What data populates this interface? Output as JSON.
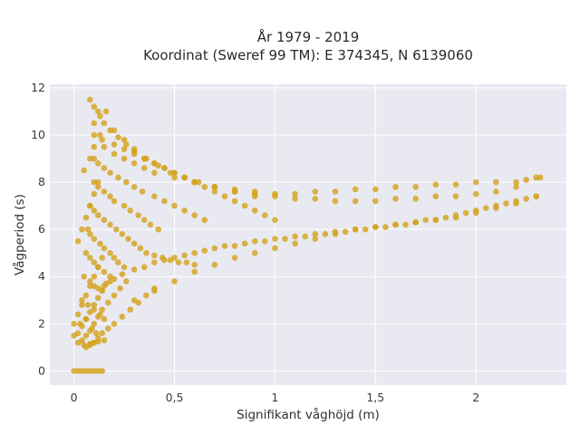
{
  "chart_data": {
    "type": "scatter",
    "title_lines": [
      "År 1979 - 2019",
      "Koordinat (Sweref 99 TM): E 374345, N 6139060"
    ],
    "xlabel": "Signifikant våghöjd (m)",
    "ylabel": "Vågperiod (s)",
    "xlim": [
      -0.12,
      2.45
    ],
    "ylim": [
      -0.6,
      12.15
    ],
    "x_ticks": [
      0,
      0.5,
      1,
      1.5,
      2
    ],
    "x_tick_labels": [
      "0",
      "0,5",
      "1",
      "1,5",
      "2"
    ],
    "y_ticks": [
      0,
      2,
      4,
      6,
      8,
      10,
      12
    ],
    "y_tick_labels": [
      "0",
      "2",
      "4",
      "6",
      "8",
      "10",
      "12"
    ],
    "grid": true,
    "colors": {
      "marker": "#d4a31f",
      "plot_background": "#e9e9f1",
      "grid": "#ffffff"
    },
    "series": [
      {
        "x": [
          0.0,
          0.02,
          0.04,
          0.06,
          0.08,
          0.1,
          0.12,
          0.14,
          0.0,
          0.02,
          0.05,
          0.08,
          0.1,
          0.12,
          0.15,
          0.03,
          0.06,
          0.09,
          0.11,
          0.04,
          0.07,
          0.1,
          0.13,
          0.15,
          0.05,
          0.08,
          0.1,
          0.14,
          0.06,
          0.08,
          0.1,
          0.12,
          0.15,
          0.07,
          0.08,
          0.1,
          0.13,
          0.15,
          0.18,
          0.2,
          0.22,
          0.25,
          0.08,
          0.1,
          0.12,
          0.15,
          0.18,
          0.21,
          0.24,
          0.27,
          0.3,
          0.33,
          0.36,
          0.4,
          0.44,
          0.48,
          0.52,
          0.56,
          0.6,
          0.1,
          0.12,
          0.15,
          0.18,
          0.2,
          0.25,
          0.28,
          0.32,
          0.35,
          0.38,
          0.42,
          0.1,
          0.12,
          0.15,
          0.18,
          0.22,
          0.26,
          0.3,
          0.34,
          0.4,
          0.45,
          0.5,
          0.55,
          0.6,
          0.65,
          0.1,
          0.14,
          0.2,
          0.25,
          0.3,
          0.35,
          0.4,
          0.45,
          0.5,
          0.55,
          0.6,
          0.65,
          0.7,
          0.75,
          0.8,
          0.85,
          0.9,
          0.95,
          1.0,
          0.3,
          0.4,
          0.5,
          0.6,
          0.7,
          0.8,
          0.9,
          1.0,
          1.1,
          1.2,
          1.3,
          1.4,
          1.5,
          1.6,
          1.7,
          1.8,
          1.9,
          2.0,
          2.1,
          2.2,
          2.3,
          0.15,
          0.2,
          0.25,
          0.3,
          0.35,
          0.4,
          0.5,
          0.6,
          0.7,
          0.8,
          0.9,
          1.0,
          1.1,
          1.2,
          1.3,
          1.4,
          1.5,
          1.6,
          1.7,
          1.8,
          1.9,
          2.0,
          2.1,
          2.2,
          2.25,
          2.3,
          2.32,
          0.1,
          0.13,
          0.16,
          0.2,
          0.25,
          0.3,
          0.36,
          0.42,
          0.48,
          0.55,
          0.62,
          0.7,
          0.8,
          0.9,
          1.0,
          1.1,
          1.2,
          1.3,
          1.4,
          1.5,
          1.6,
          1.7,
          1.8,
          1.9,
          2.0,
          2.1,
          2.2,
          0.08,
          0.1,
          0.12,
          0.15,
          0.18,
          0.22,
          0.26,
          0.3,
          0.35,
          0.4,
          0.45,
          0.5,
          0.55,
          0.6,
          0.7,
          0.8,
          0.9,
          0.06,
          0.08,
          0.1,
          0.12,
          0.14,
          0.17,
          0.2,
          0.24,
          0.28,
          0.32,
          0.36,
          0.4,
          0.04,
          0.06,
          0.08,
          0.1,
          0.12,
          0.14,
          0.17,
          0.2,
          0.23,
          0.26,
          0.02,
          0.04,
          0.06,
          0.08,
          0.1,
          0.12,
          0.14,
          0.16,
          0.18,
          0.0,
          0.02,
          0.04,
          0.06,
          0.08,
          0.1,
          0.12,
          0.14,
          0.02,
          0.04,
          0.06,
          0.08,
          0.1,
          0.12,
          0.05,
          0.08,
          0.1,
          0.13,
          0.12,
          0.15,
          0.18,
          0.2,
          0.24,
          0.3,
          0.35,
          0.4,
          0.45,
          0.5,
          0.55,
          0.6,
          0.65,
          0.7,
          0.75,
          0.8,
          0.85,
          0.9,
          0.95,
          1.0,
          1.05,
          1.1,
          1.15,
          1.2,
          1.25,
          1.3,
          1.35,
          1.4,
          1.45,
          1.5,
          1.55,
          1.6,
          1.65,
          1.7,
          1.75,
          1.8,
          1.85,
          1.9,
          1.95,
          2.0,
          2.05,
          2.1,
          2.15,
          2.2,
          2.25,
          2.3
        ],
        "y": [
          0.0,
          0.0,
          0.0,
          0.0,
          0.0,
          0.0,
          0.0,
          0.0,
          1.5,
          1.2,
          1.1,
          1.15,
          1.2,
          1.25,
          1.3,
          2.0,
          2.2,
          1.8,
          1.6,
          3.0,
          2.8,
          2.6,
          2.4,
          2.2,
          4.0,
          3.8,
          3.6,
          3.4,
          5.0,
          4.8,
          4.6,
          4.4,
          4.2,
          6.0,
          5.8,
          5.6,
          5.4,
          5.2,
          5.0,
          4.8,
          4.6,
          4.4,
          7.0,
          6.8,
          6.6,
          6.4,
          6.2,
          6.0,
          5.8,
          5.6,
          5.4,
          5.2,
          5.0,
          4.9,
          4.8,
          4.7,
          4.6,
          4.6,
          4.5,
          8.0,
          7.8,
          7.6,
          7.4,
          7.2,
          7.0,
          6.8,
          6.6,
          6.4,
          6.2,
          6.0,
          9.0,
          8.8,
          8.6,
          8.4,
          8.2,
          8.0,
          7.8,
          7.6,
          7.4,
          7.2,
          7.0,
          6.8,
          6.6,
          6.4,
          10.0,
          9.8,
          9.6,
          9.4,
          9.2,
          9.0,
          8.8,
          8.6,
          8.4,
          8.2,
          8.0,
          7.8,
          7.6,
          7.4,
          7.2,
          7.0,
          6.8,
          6.6,
          6.4,
          3.0,
          3.4,
          3.8,
          4.2,
          4.5,
          4.8,
          5.0,
          5.2,
          5.4,
          5.6,
          5.8,
          6.0,
          6.1,
          6.2,
          6.3,
          6.4,
          6.5,
          6.7,
          6.9,
          7.1,
          7.4,
          9.5,
          9.2,
          9.0,
          8.8,
          8.6,
          8.4,
          8.2,
          8.0,
          7.8,
          7.7,
          7.6,
          7.5,
          7.5,
          7.6,
          7.6,
          7.7,
          7.7,
          7.8,
          7.8,
          7.9,
          7.9,
          8.0,
          8.0,
          8.0,
          8.1,
          8.2,
          8.2,
          10.5,
          10.8,
          11.0,
          10.2,
          9.8,
          9.4,
          9.0,
          8.7,
          8.4,
          8.2,
          8.0,
          7.8,
          7.6,
          7.5,
          7.4,
          7.3,
          7.3,
          7.2,
          7.2,
          7.2,
          7.3,
          7.3,
          7.4,
          7.4,
          7.5,
          7.6,
          7.8,
          11.5,
          11.2,
          11.0,
          10.5,
          10.2,
          9.9,
          9.6,
          9.3,
          9.0,
          8.8,
          8.6,
          8.4,
          8.2,
          8.0,
          7.8,
          7.6,
          7.4,
          1.0,
          1.1,
          1.2,
          1.4,
          1.6,
          1.8,
          2.0,
          2.3,
          2.6,
          2.9,
          3.2,
          3.5,
          1.3,
          1.5,
          1.7,
          2.0,
          2.3,
          2.6,
          2.9,
          3.2,
          3.5,
          3.8,
          1.6,
          1.9,
          2.2,
          2.5,
          2.8,
          3.1,
          3.4,
          3.7,
          4.0,
          2.0,
          2.4,
          2.8,
          3.2,
          3.6,
          4.0,
          4.4,
          4.8,
          5.5,
          6.0,
          6.5,
          7.0,
          7.5,
          8.0,
          8.5,
          9.0,
          9.5,
          10.0,
          3.5,
          3.6,
          3.8,
          3.9,
          4.1,
          4.3,
          4.4,
          4.6,
          4.7,
          4.8,
          4.9,
          5.0,
          5.1,
          5.2,
          5.3,
          5.3,
          5.4,
          5.5,
          5.5,
          5.6,
          5.6,
          5.7,
          5.7,
          5.8,
          5.8,
          5.9,
          5.9,
          6.0,
          6.0,
          6.1,
          6.1,
          6.2,
          6.2,
          6.3,
          6.4,
          6.4,
          6.5,
          6.6,
          6.7,
          6.8,
          6.9,
          7.0,
          7.1,
          7.2,
          7.3,
          7.4
        ]
      }
    ]
  }
}
